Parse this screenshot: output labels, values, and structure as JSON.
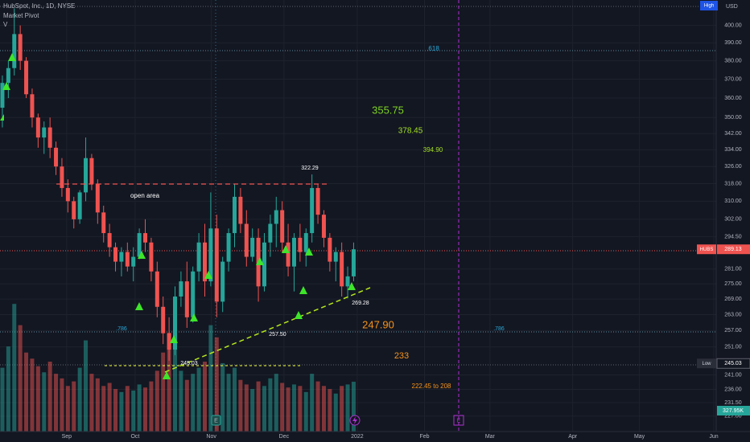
{
  "chart_data": {
    "type": "candlestick",
    "title": "HubSpot, Inc., 1D, NYSE",
    "indicator": "Market Pivot",
    "volume_title": "V",
    "currency": "USD",
    "log": true,
    "grid": true,
    "up_color": "#26a69a",
    "down_color": "#ef5350",
    "open": [
      355,
      368,
      376,
      395,
      380,
      362,
      350,
      340,
      345,
      335,
      326,
      316,
      310,
      302,
      314,
      330,
      318,
      305,
      296,
      290,
      284,
      288,
      282,
      286,
      296,
      292,
      280,
      266,
      256,
      250,
      270,
      276,
      262,
      280,
      292,
      276,
      298,
      268,
      284,
      296,
      312,
      300,
      286,
      294,
      274,
      292,
      300,
      306,
      292,
      282,
      294,
      288,
      296,
      316,
      304,
      294,
      284,
      288,
      274,
      278
    ],
    "high": [
      372,
      380,
      410,
      400,
      382,
      365,
      352,
      348,
      350,
      338,
      330,
      320,
      312,
      315,
      340,
      332,
      320,
      308,
      300,
      292,
      290,
      292,
      290,
      298,
      302,
      294,
      284,
      270,
      262,
      274,
      280,
      284,
      282,
      296,
      300,
      314,
      304,
      286,
      298,
      318,
      316,
      306,
      298,
      298,
      296,
      304,
      312,
      310,
      300,
      296,
      300,
      298,
      322.29,
      318,
      306,
      296,
      290,
      292,
      282,
      292
    ],
    "low": [
      345,
      360,
      372,
      375,
      360,
      345,
      335,
      332,
      330,
      322,
      312,
      305,
      298,
      300,
      310,
      315,
      300,
      292,
      286,
      280,
      278,
      280,
      276,
      285,
      288,
      276,
      262,
      252,
      246,
      248,
      266,
      258,
      260,
      276,
      270,
      274,
      262,
      264,
      280,
      290,
      296,
      282,
      284,
      268,
      272,
      286,
      290,
      288,
      278,
      272,
      284,
      282,
      292,
      300,
      290,
      280,
      276,
      270,
      269.28,
      276
    ],
    "close": [
      368,
      376,
      395,
      380,
      362,
      350,
      340,
      345,
      335,
      326,
      316,
      310,
      302,
      314,
      330,
      318,
      305,
      296,
      290,
      284,
      288,
      282,
      286,
      296,
      292,
      280,
      266,
      256,
      250,
      270,
      276,
      262,
      280,
      292,
      276,
      298,
      268,
      284,
      296,
      312,
      300,
      286,
      294,
      274,
      292,
      300,
      306,
      292,
      282,
      294,
      288,
      296,
      316,
      304,
      294,
      284,
      288,
      274,
      278,
      289.13
    ],
    "volume": [
      420,
      560,
      840,
      700,
      520,
      480,
      430,
      390,
      460,
      380,
      350,
      300,
      330,
      420,
      600,
      380,
      350,
      300,
      320,
      280,
      260,
      300,
      270,
      310,
      290,
      330,
      400,
      520,
      650,
      560,
      400,
      340,
      380,
      420,
      460,
      700,
      620,
      450,
      380,
      420,
      340,
      310,
      280,
      330,
      300,
      350,
      380,
      320,
      290,
      310,
      300,
      260,
      380,
      330,
      300,
      280,
      250,
      300,
      310,
      327.95
    ],
    "volume_label": "327.95K",
    "vlim": [
      0,
      2840
    ],
    "ylim": [
      222,
      415
    ],
    "yticks": [
      {
        "value": 400,
        "label": "400.00"
      },
      {
        "value": 390,
        "label": "390.00"
      },
      {
        "value": 380,
        "label": "380.00"
      },
      {
        "value": 370,
        "label": "370.00"
      },
      {
        "value": 360,
        "label": "360.00"
      },
      {
        "value": 350,
        "label": "350.00"
      },
      {
        "value": 342,
        "label": "342.00"
      },
      {
        "value": 334,
        "label": "334.00"
      },
      {
        "value": 326,
        "label": "326.00"
      },
      {
        "value": 318,
        "label": "318.00"
      },
      {
        "value": 310,
        "label": "310.00"
      },
      {
        "value": 302,
        "label": "302.00"
      },
      {
        "value": 294.5,
        "label": "294.50"
      },
      {
        "value": 281,
        "label": "281.00"
      },
      {
        "value": 275,
        "label": "275.00"
      },
      {
        "value": 269,
        "label": "269.00"
      },
      {
        "value": 263,
        "label": "263.00"
      },
      {
        "value": 257,
        "label": "257.00"
      },
      {
        "value": 251,
        "label": "251.00"
      },
      {
        "value": 241,
        "label": "241.00"
      },
      {
        "value": 236,
        "label": "236.00"
      },
      {
        "value": 231.5,
        "label": "231.50"
      },
      {
        "value": 227,
        "label": "227.00"
      }
    ],
    "xlim": [
      -0.4,
      119.9
    ],
    "xticks": [
      {
        "value": 10.8,
        "label": "Sep"
      },
      {
        "value": 22.3,
        "label": "Oct"
      },
      {
        "value": 35.1,
        "label": "Nov"
      },
      {
        "value": 47.3,
        "label": "Dec"
      },
      {
        "value": 59.6,
        "label": "2022"
      },
      {
        "value": 70.9,
        "label": "Feb"
      },
      {
        "value": 81.9,
        "label": "Mar"
      },
      {
        "value": 95.8,
        "label": "Apr"
      },
      {
        "value": 107,
        "label": "May"
      },
      {
        "value": 119.5,
        "label": "Jun"
      }
    ],
    "symbol": "HUBS",
    "last_price": 289.13,
    "low_label": "Low",
    "low_price": 245.03,
    "high_label": "High",
    "annotations": [
      "open area",
      "322.29",
      "269.28",
      "257.50",
      "245.03",
      ".618",
      "355.75",
      "378.45",
      "394.90",
      ".786",
      ".786",
      "247.90",
      "233",
      "222.45 to 208"
    ]
  }
}
